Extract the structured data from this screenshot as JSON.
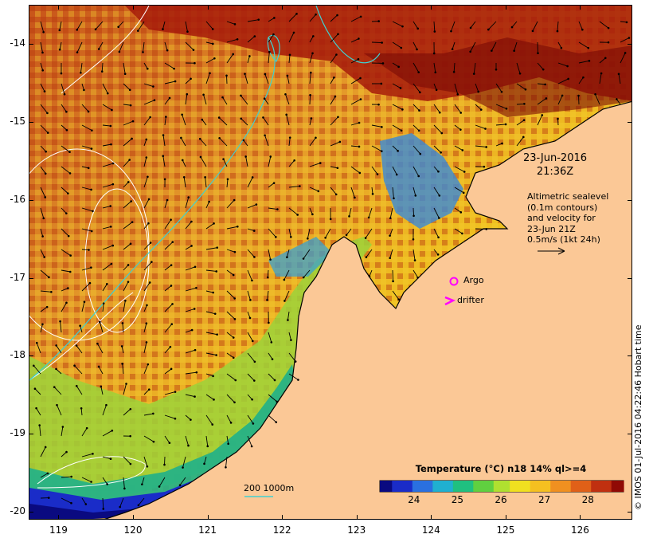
{
  "map": {
    "y_axis_labels": [
      "-14",
      "-15",
      "-16",
      "-17",
      "-18",
      "-19",
      "-20"
    ],
    "x_axis_labels": [
      "119",
      "120",
      "121",
      "122",
      "123",
      "124",
      "125",
      "126"
    ],
    "lat_range": [
      -20.1,
      -13.5
    ],
    "lon_range": [
      118.6,
      126.7
    ]
  },
  "annotations": {
    "date": "23-Jun-2016",
    "time": "21:36Z",
    "description_lines": [
      "Altimetric sealevel",
      "(0.1m contours)",
      "and velocity for",
      "23-Jun 21Z",
      "0.5m/s (1kt 24h)"
    ],
    "argo_label": "Argo",
    "drifter_label": "drifter",
    "depth_label": "200  1000m"
  },
  "colorbar": {
    "title": "Temperature (°C) n18 14% ql>=4",
    "ticks": [
      "24",
      "25",
      "26",
      "27",
      "28"
    ],
    "range": [
      23.2,
      28.8
    ]
  },
  "credit": "© IMOS 01-Jul-2016 04:22:46 Hobart time",
  "colors": {
    "land": "#fbc896",
    "argo_marker": "#ff00ff",
    "drifter_marker": "#ff00ff",
    "contour": "#ffffff",
    "isobath": "#40d0d0"
  }
}
